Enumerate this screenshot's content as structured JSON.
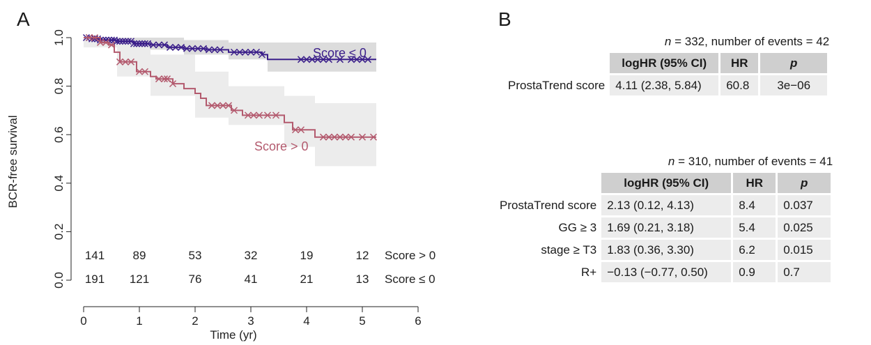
{
  "panels": {
    "a_label": "A",
    "b_label": "B"
  },
  "chart_data": {
    "type": "line",
    "xlabel": "Time (yr)",
    "ylabel": "BCR-free survival",
    "xlim": [
      0,
      6
    ],
    "ylim": [
      0,
      1
    ],
    "xticks": [
      "0",
      "1",
      "2",
      "3",
      "4",
      "5",
      "6"
    ],
    "yticks": [
      "0.0",
      "0.2",
      "0.4",
      "0.6",
      "0.8",
      "1.0"
    ],
    "series": [
      {
        "name": "Score ≤ 0",
        "color": "#3b1f8a",
        "band_color": "#d6d6d6",
        "steps": [
          [
            0,
            1.0
          ],
          [
            0.15,
            0.995
          ],
          [
            0.3,
            0.99
          ],
          [
            0.6,
            0.985
          ],
          [
            0.9,
            0.975
          ],
          [
            1.2,
            0.97
          ],
          [
            1.5,
            0.96
          ],
          [
            1.8,
            0.955
          ],
          [
            2.2,
            0.95
          ],
          [
            2.6,
            0.94
          ],
          [
            3.2,
            0.93
          ],
          [
            3.3,
            0.91
          ],
          [
            5.25,
            0.91
          ]
        ],
        "ci_upper": [
          [
            0,
            1.0
          ],
          [
            0.9,
            1.0
          ],
          [
            1.8,
            0.99
          ],
          [
            2.6,
            0.98
          ],
          [
            3.3,
            0.98
          ],
          [
            5.25,
            0.98
          ]
        ],
        "ci_lower": [
          [
            0,
            0.99
          ],
          [
            0.6,
            0.97
          ],
          [
            1.2,
            0.95
          ],
          [
            1.8,
            0.93
          ],
          [
            2.6,
            0.91
          ],
          [
            3.3,
            0.86
          ],
          [
            5.25,
            0.84
          ]
        ],
        "censor_x": [
          0.05,
          0.1,
          0.15,
          0.2,
          0.25,
          0.3,
          0.35,
          0.4,
          0.45,
          0.5,
          0.55,
          0.6,
          0.65,
          0.7,
          0.75,
          0.8,
          0.85,
          0.9,
          0.95,
          1.0,
          1.05,
          1.1,
          1.15,
          1.25,
          1.35,
          1.45,
          1.55,
          1.65,
          1.75,
          1.85,
          1.95,
          2.05,
          2.15,
          2.25,
          2.35,
          2.45,
          2.7,
          2.8,
          2.9,
          3.0,
          3.1,
          3.2,
          3.9,
          4.0,
          4.1,
          4.2,
          4.3,
          4.4,
          4.6,
          4.8,
          4.9,
          5.0,
          5.1
        ]
      },
      {
        "name": "Score > 0",
        "color": "#b35a6e",
        "band_color": "#ececec",
        "steps": [
          [
            0,
            1.0
          ],
          [
            0.3,
            0.98
          ],
          [
            0.45,
            0.97
          ],
          [
            0.55,
            0.94
          ],
          [
            0.65,
            0.9
          ],
          [
            0.95,
            0.86
          ],
          [
            1.2,
            0.84
          ],
          [
            1.3,
            0.83
          ],
          [
            1.6,
            0.81
          ],
          [
            1.8,
            0.79
          ],
          [
            2.0,
            0.77
          ],
          [
            2.1,
            0.75
          ],
          [
            2.2,
            0.72
          ],
          [
            2.65,
            0.7
          ],
          [
            2.85,
            0.68
          ],
          [
            3.6,
            0.65
          ],
          [
            3.75,
            0.62
          ],
          [
            4.15,
            0.59
          ],
          [
            5.25,
            0.59
          ]
        ],
        "ci_upper": [
          [
            0,
            1.0
          ],
          [
            0.6,
            0.98
          ],
          [
            1.2,
            0.93
          ],
          [
            2.0,
            0.86
          ],
          [
            2.6,
            0.8
          ],
          [
            3.6,
            0.76
          ],
          [
            4.15,
            0.73
          ],
          [
            5.25,
            0.73
          ]
        ],
        "ci_lower": [
          [
            0,
            0.96
          ],
          [
            0.6,
            0.84
          ],
          [
            1.2,
            0.76
          ],
          [
            2.0,
            0.67
          ],
          [
            2.6,
            0.64
          ],
          [
            3.6,
            0.55
          ],
          [
            4.15,
            0.47
          ],
          [
            5.25,
            0.47
          ]
        ],
        "censor_x": [
          0.1,
          0.2,
          0.3,
          0.4,
          0.5,
          0.65,
          0.75,
          0.85,
          1.0,
          1.1,
          1.35,
          1.45,
          1.5,
          1.6,
          2.3,
          2.4,
          2.5,
          2.6,
          2.7,
          2.95,
          3.05,
          3.15,
          3.3,
          3.45,
          3.8,
          3.9,
          4.3,
          4.4,
          4.5,
          4.6,
          4.7,
          4.8,
          5.0,
          5.2
        ]
      }
    ],
    "curve_labels": {
      "low": "Score ≤ 0",
      "high": "Score > 0"
    },
    "at_risk": {
      "times": [
        0,
        1,
        2,
        3,
        4,
        5
      ],
      "rows": [
        {
          "label": "Score > 0",
          "counts": [
            "141",
            "89",
            "53",
            "32",
            "19",
            "12"
          ]
        },
        {
          "label": "Score ≤ 0",
          "counts": [
            "191",
            "121",
            "76",
            "41",
            "21",
            "13"
          ]
        }
      ]
    }
  },
  "tables": [
    {
      "caption_n": "n",
      "caption_rest": " = 332, number of events = 42",
      "headers": [
        "logHR (95% CI)",
        "HR",
        "p"
      ],
      "rows": [
        {
          "label": "ProstaTrend score",
          "cells": [
            "4.11 (2.38, 5.84)",
            "60.8",
            "3e−06"
          ]
        }
      ]
    },
    {
      "caption_n": "n",
      "caption_rest": " = 310, number of events = 41",
      "headers": [
        "logHR (95% CI)",
        "HR",
        "p"
      ],
      "rows": [
        {
          "label": "ProstaTrend score",
          "cells": [
            "2.13 (0.12, 4.13)",
            "8.4",
            "0.037"
          ]
        },
        {
          "label": "GG ≥ 3",
          "cells": [
            "1.69 (0.21, 3.18)",
            "5.4",
            "0.025"
          ]
        },
        {
          "label": "stage ≥ T3",
          "cells": [
            "1.83 (0.36, 3.30)",
            "6.2",
            "0.015"
          ]
        },
        {
          "label": "R+",
          "cells": [
            "−0.13 (−0.77, 0.50)",
            "0.9",
            "0.7"
          ]
        }
      ]
    }
  ]
}
